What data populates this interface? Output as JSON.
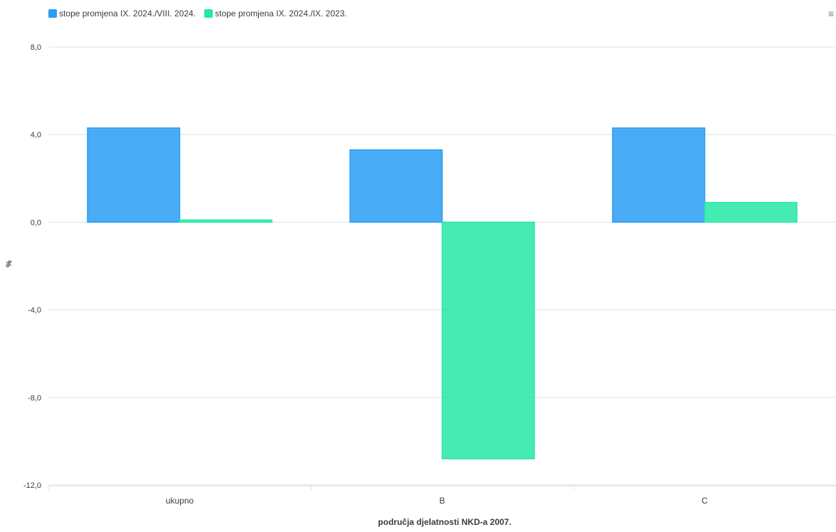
{
  "chart_data": {
    "type": "bar",
    "categories": [
      "ukupno",
      "B",
      "C"
    ],
    "series": [
      {
        "name": "stope promjena IX. 2024./VIII. 2024.",
        "color": "#2a9df4",
        "values": [
          4.3,
          3.3,
          4.3
        ]
      },
      {
        "name": "stope promjena IX. 2024./IX. 2023.",
        "color": "#26e7a6",
        "values": [
          0.1,
          -10.8,
          0.9
        ]
      }
    ],
    "xlabel": "područja djelatnosti NKD-a 2007.",
    "ylabel": "%",
    "ylim": [
      -12,
      8
    ],
    "yticks": [
      8,
      4,
      0,
      -4,
      -8,
      -12
    ],
    "ytick_labels": [
      "8,0",
      "4,0",
      "0,0",
      "-4,0",
      "-8,0",
      "-12,0"
    ],
    "grid": true,
    "legend_position": "top-left"
  },
  "toolbar": {
    "menu_icon": "hamburger-menu-icon"
  }
}
